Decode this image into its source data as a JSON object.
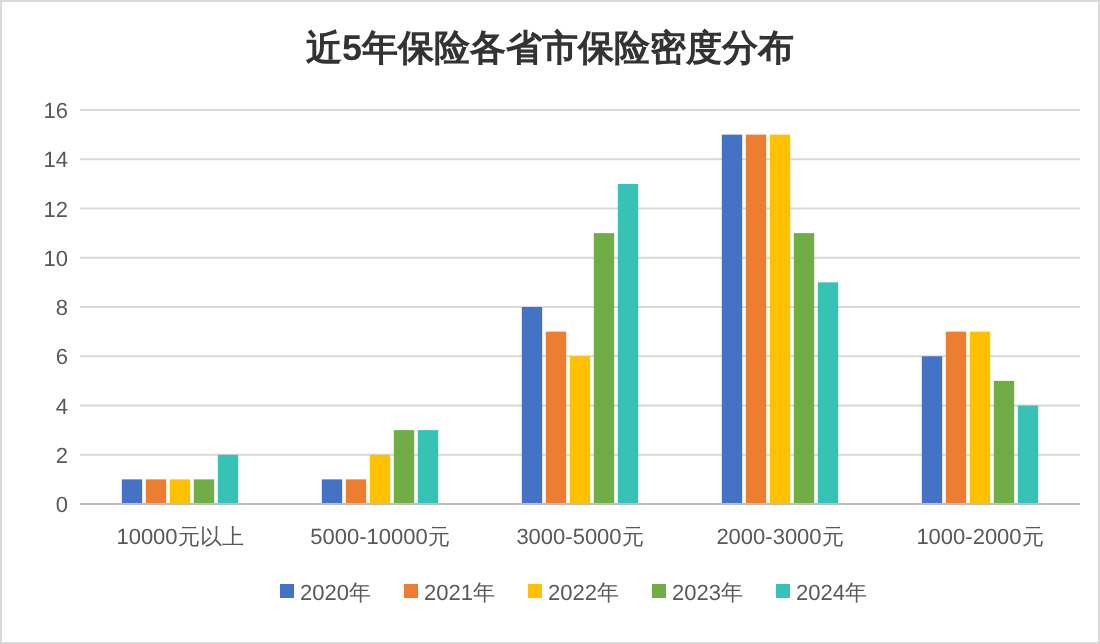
{
  "chart_data": {
    "type": "bar",
    "title": "近5年保险各省市保险密度分布",
    "categories": [
      "10000元以上",
      "5000-10000元",
      "3000-5000元",
      "2000-3000元",
      "1000-2000元"
    ],
    "series": [
      {
        "name": "2020年",
        "color": "#4472c4",
        "values": [
          1,
          1,
          8,
          15,
          6
        ]
      },
      {
        "name": "2021年",
        "color": "#ed7d31",
        "values": [
          1,
          1,
          7,
          15,
          7
        ]
      },
      {
        "name": "2022年",
        "color": "#ffc000",
        "values": [
          1,
          2,
          6,
          15,
          7
        ]
      },
      {
        "name": "2023年",
        "color": "#70ad47",
        "values": [
          1,
          3,
          11,
          11,
          5
        ]
      },
      {
        "name": "2024年",
        "color": "#36c3b5",
        "values": [
          2,
          3,
          13,
          9,
          4
        ]
      }
    ],
    "ylim": [
      0,
      16
    ],
    "yticks": [
      0,
      2,
      4,
      6,
      8,
      10,
      12,
      14,
      16
    ],
    "grid": "y",
    "legend": "bottom"
  }
}
